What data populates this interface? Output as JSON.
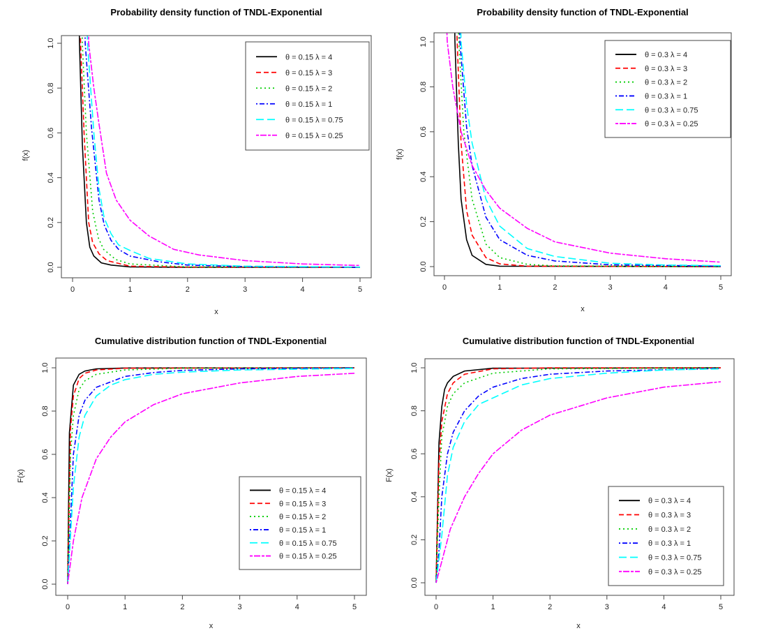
{
  "chart_data": [
    {
      "type": "line",
      "title": "Probability density function of TNDL-Exponential",
      "xlabel": "x",
      "ylabel": "f(x)",
      "xlim": [
        0,
        5
      ],
      "ylim": [
        0,
        1
      ],
      "xticks": [
        "0",
        "1",
        "2",
        "3",
        "4",
        "5"
      ],
      "yticks": [
        "0.0",
        "0.2",
        "0.4",
        "0.6",
        "0.8",
        "1.0"
      ],
      "legend_position": "top-right",
      "series": [
        {
          "name": "θ = 0.15  λ = 4",
          "color": "#000000",
          "style": "solid",
          "x": [
            0.1,
            0.12,
            0.17,
            0.24,
            0.3,
            0.37,
            0.5,
            0.67,
            1,
            2,
            5
          ],
          "y": [
            1.4,
            1.0,
            0.55,
            0.2,
            0.09,
            0.05,
            0.02,
            0.01,
            0.002,
            0,
            0
          ]
        },
        {
          "name": "θ = 0.15  λ = 3",
          "color": "#FF0000",
          "style": "dashed",
          "x": [
            0.12,
            0.14,
            0.2,
            0.28,
            0.35,
            0.46,
            0.6,
            1,
            2,
            5
          ],
          "y": [
            1.4,
            1.0,
            0.6,
            0.2,
            0.11,
            0.06,
            0.03,
            0.005,
            0.001,
            0
          ]
        },
        {
          "name": "θ = 0.15  λ = 2",
          "color": "#00CD00",
          "style": "dotted",
          "x": [
            0.15,
            0.17,
            0.24,
            0.35,
            0.45,
            0.54,
            0.75,
            1,
            2,
            5
          ],
          "y": [
            1.4,
            1.0,
            0.6,
            0.25,
            0.13,
            0.08,
            0.035,
            0.015,
            0.002,
            0
          ]
        },
        {
          "name": "θ = 0.15  λ = 1",
          "color": "#0000FF",
          "style": "dotdash",
          "x": [
            0.2,
            0.22,
            0.33,
            0.46,
            0.55,
            0.67,
            0.8,
            1,
            1.5,
            2,
            3,
            5
          ],
          "y": [
            1.4,
            1.0,
            0.62,
            0.3,
            0.19,
            0.12,
            0.08,
            0.05,
            0.025,
            0.01,
            0.003,
            0
          ]
        },
        {
          "name": "θ = 0.15  λ = 0.75",
          "color": "#00FFFF",
          "style": "longdash",
          "x": [
            0.24,
            0.26,
            0.37,
            0.46,
            0.55,
            0.67,
            0.8,
            1,
            1.33,
            2,
            3,
            5
          ],
          "y": [
            1.4,
            1.0,
            0.6,
            0.35,
            0.22,
            0.15,
            0.1,
            0.075,
            0.04,
            0.015,
            0.005,
            0.001
          ]
        },
        {
          "name": "θ = 0.15  λ = 0.25",
          "color": "#FF00FF",
          "style": "twodash",
          "x": [
            0.26,
            0.28,
            0.37,
            0.46,
            0.59,
            0.76,
            1,
            1.33,
            1.76,
            2.2,
            3,
            4,
            5
          ],
          "y": [
            1.4,
            1.0,
            0.8,
            0.64,
            0.42,
            0.3,
            0.21,
            0.14,
            0.08,
            0.055,
            0.03,
            0.015,
            0.008
          ]
        }
      ]
    },
    {
      "type": "line",
      "title": "Probability density function of TNDL-Exponential",
      "xlabel": "x",
      "ylabel": "f(x)",
      "xlim": [
        0,
        5
      ],
      "ylim": [
        0,
        1
      ],
      "xticks": [
        "0",
        "1",
        "2",
        "3",
        "4",
        "5"
      ],
      "yticks": [
        "0.0",
        "0.2",
        "0.4",
        "0.6",
        "0.8",
        "1.0"
      ],
      "legend_position": "top-right",
      "series": [
        {
          "name": "θ = 0.3  λ = 4",
          "color": "#000000",
          "style": "solid",
          "x": [
            0.17,
            0.19,
            0.25,
            0.3,
            0.4,
            0.5,
            0.75,
            1,
            5
          ],
          "y": [
            1.3,
            1.0,
            0.55,
            0.3,
            0.12,
            0.05,
            0.01,
            0.002,
            0
          ]
        },
        {
          "name": "θ = 0.3  λ = 3",
          "color": "#FF0000",
          "style": "dashed",
          "x": [
            0.2,
            0.23,
            0.3,
            0.4,
            0.5,
            0.75,
            1,
            1.5,
            5
          ],
          "y": [
            1.3,
            1.0,
            0.55,
            0.25,
            0.14,
            0.04,
            0.012,
            0.002,
            0
          ]
        },
        {
          "name": "θ = 0.3  λ = 2",
          "color": "#00CD00",
          "style": "dotted",
          "x": [
            0.23,
            0.26,
            0.35,
            0.5,
            0.75,
            1,
            1.5,
            2,
            5
          ],
          "y": [
            1.3,
            1.0,
            0.6,
            0.3,
            0.1,
            0.04,
            0.01,
            0.003,
            0
          ]
        },
        {
          "name": "θ = 0.3  λ = 1",
          "color": "#0000FF",
          "style": "dotdash",
          "x": [
            0.25,
            0.28,
            0.4,
            0.5,
            0.75,
            1,
            1.5,
            2,
            3,
            5
          ],
          "y": [
            1.3,
            1.0,
            0.62,
            0.45,
            0.22,
            0.12,
            0.05,
            0.025,
            0.008,
            0.002
          ]
        },
        {
          "name": "θ = 0.3  λ = 0.75",
          "color": "#00FFFF",
          "style": "longdash",
          "x": [
            0.27,
            0.3,
            0.4,
            0.5,
            0.75,
            1,
            1.5,
            2,
            3,
            4,
            5
          ],
          "y": [
            1.3,
            1.0,
            0.72,
            0.55,
            0.3,
            0.18,
            0.08,
            0.045,
            0.015,
            0.007,
            0.004
          ]
        },
        {
          "name": "θ = 0.3  λ = 0.25",
          "color": "#FF00FF",
          "style": "twodash",
          "x": [
            0.02,
            0.05,
            0.15,
            0.3,
            0.5,
            0.75,
            1,
            1.5,
            2,
            3,
            4,
            5
          ],
          "y": [
            1.2,
            1.0,
            0.8,
            0.6,
            0.45,
            0.34,
            0.26,
            0.17,
            0.11,
            0.06,
            0.035,
            0.02
          ]
        }
      ]
    },
    {
      "type": "line",
      "title": "Cumulative distribution function of TNDL-Exponential",
      "xlabel": "x",
      "ylabel": "F(x)",
      "xlim": [
        0,
        5
      ],
      "ylim": [
        0,
        1
      ],
      "xticks": [
        "0",
        "1",
        "2",
        "3",
        "4",
        "5"
      ],
      "yticks": [
        "0.0",
        "0.2",
        "0.4",
        "0.6",
        "0.8",
        "1.0"
      ],
      "legend_position": "bottom-right",
      "series": [
        {
          "name": "θ = 0.15  λ = 4",
          "color": "#000000",
          "style": "solid",
          "x": [
            0,
            0.03,
            0.1,
            0.2,
            0.3,
            0.5,
            1,
            5
          ],
          "y": [
            0,
            0.7,
            0.92,
            0.97,
            0.985,
            0.995,
            0.999,
            1
          ]
        },
        {
          "name": "θ = 0.15  λ = 3",
          "color": "#FF0000",
          "style": "dashed",
          "x": [
            0,
            0.05,
            0.1,
            0.2,
            0.3,
            0.5,
            1,
            5
          ],
          "y": [
            0,
            0.72,
            0.87,
            0.95,
            0.975,
            0.99,
            0.998,
            1
          ]
        },
        {
          "name": "θ = 0.15  λ = 2",
          "color": "#00CD00",
          "style": "dotted",
          "x": [
            0,
            0.05,
            0.1,
            0.2,
            0.3,
            0.5,
            1,
            2,
            5
          ],
          "y": [
            0,
            0.6,
            0.78,
            0.9,
            0.94,
            0.97,
            0.99,
            0.998,
            1
          ]
        },
        {
          "name": "θ = 0.15  λ = 1",
          "color": "#0000FF",
          "style": "dotdash",
          "x": [
            0,
            0.1,
            0.2,
            0.3,
            0.5,
            1,
            1.5,
            2,
            3,
            5
          ],
          "y": [
            0,
            0.6,
            0.78,
            0.85,
            0.91,
            0.96,
            0.978,
            0.988,
            0.995,
            0.999
          ]
        },
        {
          "name": "θ = 0.15  λ = 0.75",
          "color": "#00FFFF",
          "style": "longdash",
          "x": [
            0,
            0.1,
            0.2,
            0.3,
            0.5,
            0.75,
            1,
            1.5,
            2,
            3,
            5
          ],
          "y": [
            0,
            0.45,
            0.68,
            0.78,
            0.87,
            0.92,
            0.945,
            0.97,
            0.98,
            0.99,
            0.997
          ]
        },
        {
          "name": "θ = 0.15  λ = 0.25",
          "color": "#FF00FF",
          "style": "twodash",
          "x": [
            0,
            0.1,
            0.25,
            0.5,
            0.75,
            1,
            1.5,
            2,
            3,
            4,
            5
          ],
          "y": [
            0,
            0.2,
            0.4,
            0.58,
            0.68,
            0.75,
            0.83,
            0.88,
            0.93,
            0.96,
            0.975
          ]
        }
      ]
    },
    {
      "type": "line",
      "title": "Cumulative distribution function of TNDL-Exponential",
      "xlabel": "x",
      "ylabel": "F(x)",
      "xlim": [
        0,
        5
      ],
      "ylim": [
        0,
        1
      ],
      "xticks": [
        "0",
        "1",
        "2",
        "3",
        "4",
        "5"
      ],
      "yticks": [
        "0.0",
        "0.2",
        "0.4",
        "0.6",
        "0.8",
        "1.0"
      ],
      "legend_position": "bottom-right",
      "series": [
        {
          "name": "θ = 0.3  λ = 4",
          "color": "#000000",
          "style": "solid",
          "x": [
            0,
            0.05,
            0.1,
            0.15,
            0.2,
            0.3,
            0.5,
            1,
            5
          ],
          "y": [
            0,
            0.65,
            0.82,
            0.9,
            0.93,
            0.96,
            0.985,
            0.998,
            1
          ]
        },
        {
          "name": "θ = 0.3  λ = 3",
          "color": "#FF0000",
          "style": "dashed",
          "x": [
            0,
            0.05,
            0.1,
            0.2,
            0.3,
            0.5,
            1,
            2,
            5
          ],
          "y": [
            0,
            0.55,
            0.75,
            0.88,
            0.93,
            0.97,
            0.995,
            1,
            1
          ]
        },
        {
          "name": "θ = 0.3  λ = 2",
          "color": "#00CD00",
          "style": "dotted",
          "x": [
            0,
            0.05,
            0.1,
            0.2,
            0.3,
            0.5,
            1,
            2,
            5
          ],
          "y": [
            0,
            0.4,
            0.68,
            0.82,
            0.88,
            0.93,
            0.975,
            0.995,
            1
          ]
        },
        {
          "name": "θ = 0.3  λ = 1",
          "color": "#0000FF",
          "style": "dotdash",
          "x": [
            0,
            0.05,
            0.1,
            0.2,
            0.3,
            0.5,
            0.75,
            1,
            1.5,
            2,
            3,
            5
          ],
          "y": [
            0,
            0.15,
            0.4,
            0.6,
            0.7,
            0.8,
            0.87,
            0.91,
            0.95,
            0.97,
            0.985,
            0.997
          ]
        },
        {
          "name": "θ = 0.3  λ = 0.75",
          "color": "#00FFFF",
          "style": "longdash",
          "x": [
            0,
            0.1,
            0.2,
            0.3,
            0.5,
            0.75,
            1,
            1.5,
            2,
            3,
            4,
            5
          ],
          "y": [
            0,
            0.22,
            0.5,
            0.63,
            0.75,
            0.83,
            0.86,
            0.92,
            0.95,
            0.975,
            0.99,
            0.995
          ]
        },
        {
          "name": "θ = 0.3  λ = 0.25",
          "color": "#FF00FF",
          "style": "twodash",
          "x": [
            0,
            0.1,
            0.25,
            0.5,
            0.75,
            1,
            1.5,
            2,
            3,
            4,
            5
          ],
          "y": [
            0,
            0.1,
            0.25,
            0.4,
            0.51,
            0.6,
            0.71,
            0.78,
            0.86,
            0.91,
            0.935
          ]
        }
      ]
    }
  ]
}
